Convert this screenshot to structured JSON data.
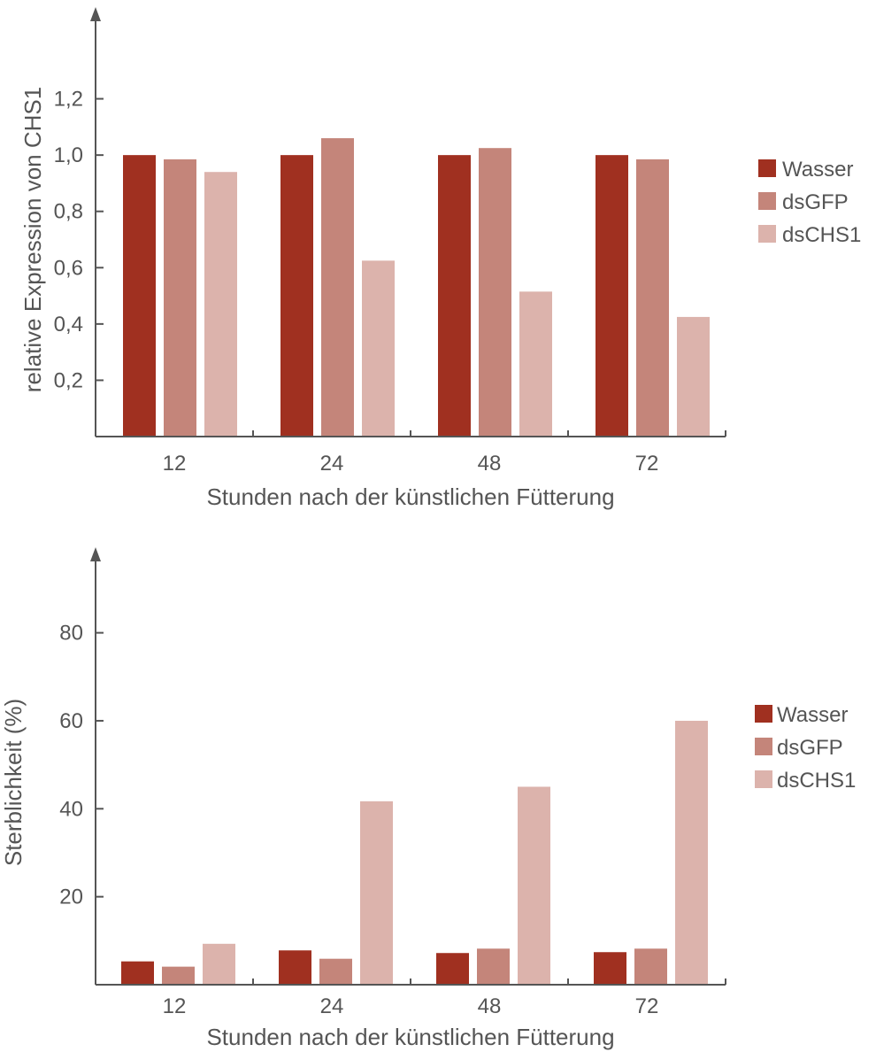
{
  "colors": {
    "Wasser": "#a03020",
    "dsGFP": "#c4857a",
    "dsCHS1": "#dcb3ac",
    "axis": "#555555"
  },
  "chart_data": [
    {
      "type": "bar",
      "categories": [
        "12",
        "24",
        "48",
        "72"
      ],
      "xlabel": "Stunden nach der künstlichen Fütterung",
      "ylabel": "relative Expression von CHS1",
      "ylim": [
        0,
        1.4
      ],
      "yticks": [
        "0,2",
        "0,4",
        "0,6",
        "0,8",
        "1,0",
        "1,2"
      ],
      "ytick_values": [
        0.2,
        0.4,
        0.6,
        0.8,
        1.0,
        1.2
      ],
      "legend_position": "right",
      "series": [
        {
          "name": "Wasser",
          "values": [
            1.0,
            1.0,
            1.0,
            1.0
          ]
        },
        {
          "name": "dsGFP",
          "values": [
            0.985,
            1.06,
            1.025,
            0.985
          ]
        },
        {
          "name": "dsCHS1",
          "values": [
            0.94,
            0.625,
            0.515,
            0.425
          ]
        }
      ]
    },
    {
      "type": "bar",
      "categories": [
        "12",
        "24",
        "48",
        "72"
      ],
      "xlabel": "Stunden nach der künstlichen Fütterung",
      "ylabel": "Sterblichkeit (%)",
      "ylim": [
        0,
        92
      ],
      "yticks": [
        "20",
        "40",
        "60",
        "80"
      ],
      "ytick_values": [
        20,
        40,
        60,
        80
      ],
      "legend_position": "right",
      "series": [
        {
          "name": "Wasser",
          "values": [
            5.3,
            7.8,
            7.2,
            7.4
          ]
        },
        {
          "name": "dsGFP",
          "values": [
            4.1,
            5.9,
            8.2,
            8.2
          ]
        },
        {
          "name": "dsCHS1",
          "values": [
            9.3,
            41.7,
            45.0,
            60.0
          ]
        }
      ]
    }
  ]
}
